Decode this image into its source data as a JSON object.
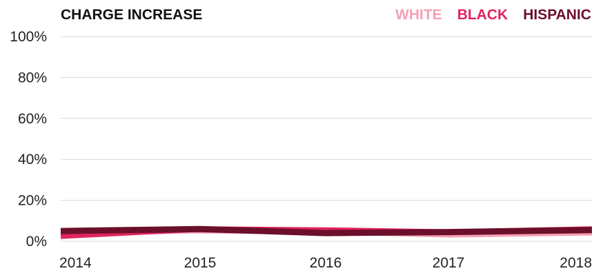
{
  "chart_data": {
    "type": "line",
    "title": "CHARGE INCREASE",
    "xlabel": "",
    "ylabel": "",
    "x": [
      "2014",
      "2015",
      "2016",
      "2017",
      "2018"
    ],
    "ylim": [
      0,
      100
    ],
    "yticks": [
      "0%",
      "20%",
      "40%",
      "60%",
      "80%",
      "100%"
    ],
    "ytick_values": [
      0,
      20,
      40,
      60,
      80,
      100
    ],
    "grid": true,
    "legend_placement": "top-right",
    "series": [
      {
        "name": "WHITE",
        "color": "#f4a0b4",
        "values": [
          4.0,
          5.0,
          4.5,
          3.0,
          4.0
        ]
      },
      {
        "name": "BLACK",
        "color": "#e0245e",
        "values": [
          2.5,
          6.0,
          5.5,
          4.5,
          6.0
        ]
      },
      {
        "name": "HISPANIC",
        "color": "#6b0f2a",
        "values": [
          5.0,
          6.0,
          4.0,
          4.5,
          5.5
        ]
      }
    ]
  }
}
